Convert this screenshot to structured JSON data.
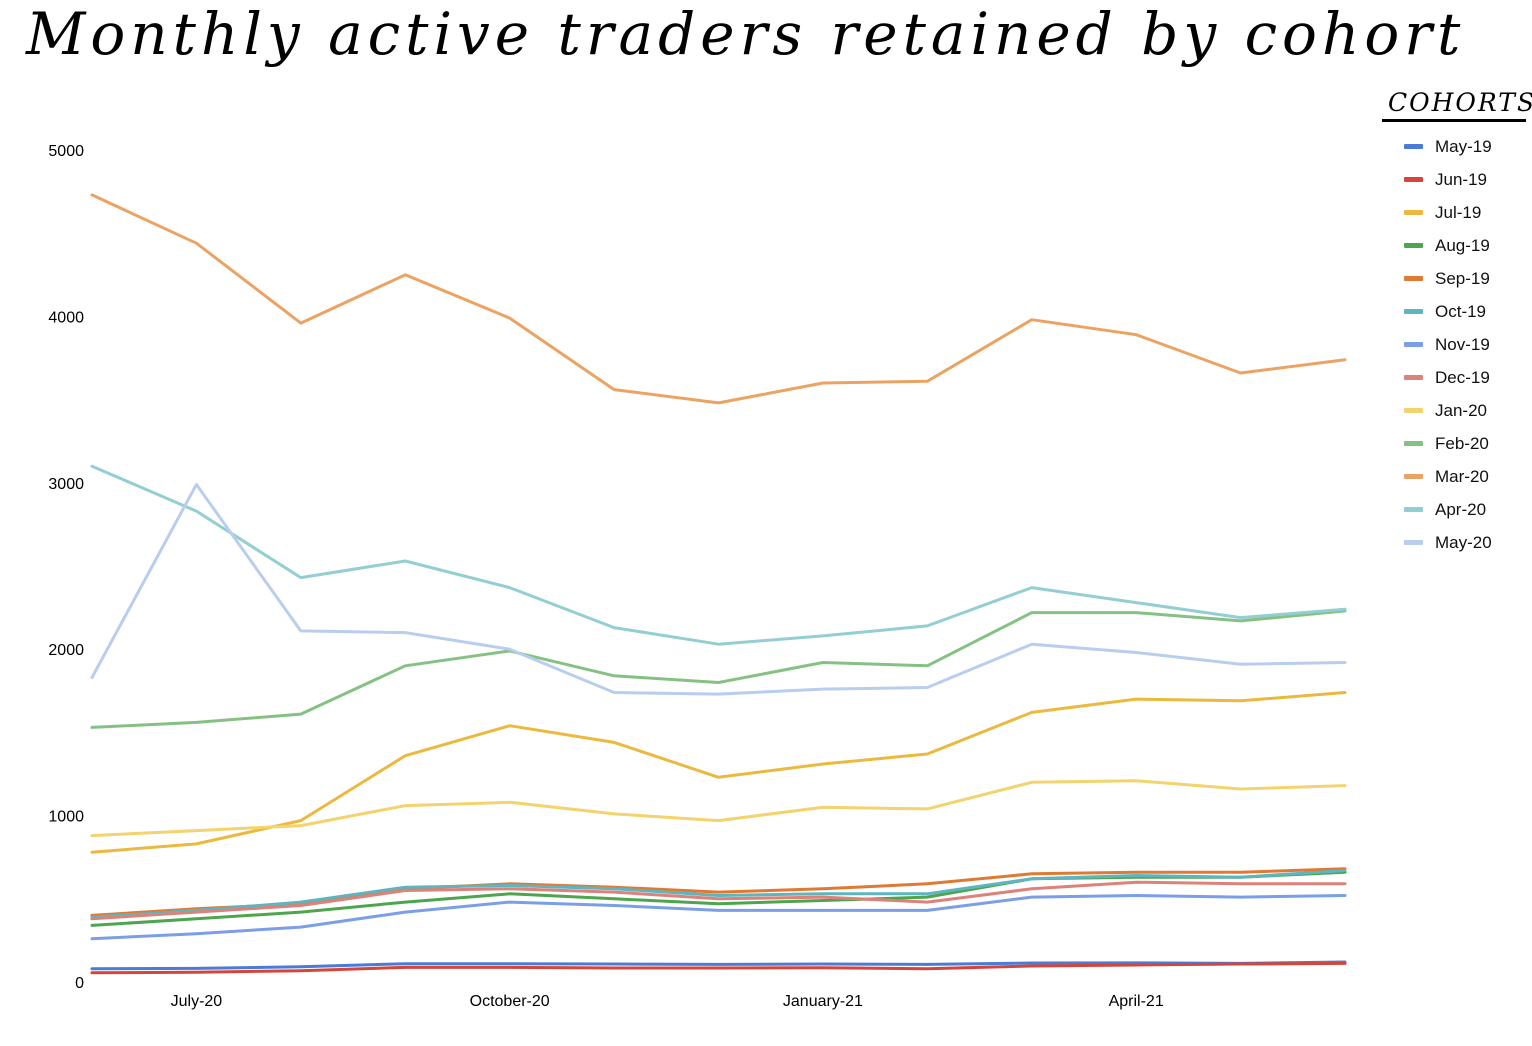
{
  "chart_data": {
    "type": "line",
    "title": "Monthly active traders retained by cohort",
    "xlabel": "",
    "ylabel": "",
    "ylim": [
      0,
      5000
    ],
    "y_ticks": [
      "0",
      "1000",
      "2000",
      "3000",
      "4000",
      "5000"
    ],
    "x_tick_labels": [
      "July-20",
      "October-20",
      "January-21",
      "April-21"
    ],
    "x": [
      "Jun-20",
      "Jul-20",
      "Aug-20",
      "Sep-20",
      "Oct-20",
      "Nov-20",
      "Dec-20",
      "Jan-21",
      "Feb-21",
      "Mar-21",
      "Apr-21",
      "May-21",
      "Jun-21"
    ],
    "grid": false,
    "legend": {
      "title": "COHORTS",
      "position": "right"
    },
    "series": [
      {
        "name": "May-19",
        "color": "#4a7bd6",
        "values": [
          80,
          82,
          92,
          110,
          110,
          108,
          106,
          108,
          106,
          114,
          115,
          112,
          120
        ]
      },
      {
        "name": "Jun-19",
        "color": "#d4463c",
        "values": [
          55,
          58,
          68,
          88,
          88,
          84,
          84,
          86,
          80,
          96,
          102,
          108,
          112
        ]
      },
      {
        "name": "Jul-19",
        "color": "#ecb93f",
        "values": [
          780,
          830,
          970,
          1360,
          1540,
          1440,
          1230,
          1310,
          1370,
          1620,
          1700,
          1690,
          1740
        ]
      },
      {
        "name": "Aug-19",
        "color": "#4da54d",
        "values": [
          340,
          380,
          420,
          480,
          530,
          500,
          470,
          490,
          510,
          620,
          630,
          630,
          660
        ]
      },
      {
        "name": "Sep-19",
        "color": "#e07a33",
        "values": [
          400,
          440,
          470,
          560,
          590,
          570,
          540,
          560,
          590,
          650,
          660,
          660,
          680
        ]
      },
      {
        "name": "Oct-19",
        "color": "#5fb5bf",
        "values": [
          390,
          430,
          480,
          570,
          580,
          560,
          520,
          530,
          530,
          620,
          640,
          630,
          670
        ]
      },
      {
        "name": "Nov-19",
        "color": "#7b9ee6",
        "values": [
          260,
          290,
          330,
          420,
          480,
          460,
          430,
          430,
          430,
          510,
          520,
          510,
          520
        ]
      },
      {
        "name": "Dec-19",
        "color": "#dd827a",
        "values": [
          380,
          420,
          460,
          550,
          560,
          540,
          500,
          510,
          480,
          560,
          600,
          590,
          590
        ]
      },
      {
        "name": "Jan-20",
        "color": "#f2d36d",
        "values": [
          880,
          910,
          940,
          1060,
          1080,
          1010,
          970,
          1050,
          1040,
          1200,
          1210,
          1160,
          1180
        ]
      },
      {
        "name": "Feb-20",
        "color": "#86c184",
        "values": [
          1530,
          1560,
          1610,
          1900,
          1990,
          1840,
          1800,
          1920,
          1900,
          2220,
          2220,
          2170,
          2230
        ]
      },
      {
        "name": "Mar-20",
        "color": "#eba363",
        "values": [
          4730,
          4440,
          3960,
          4250,
          3990,
          3560,
          3480,
          3600,
          3610,
          3980,
          3890,
          3660,
          3740
        ]
      },
      {
        "name": "Apr-20",
        "color": "#93ced2",
        "values": [
          3100,
          2830,
          2430,
          2530,
          2370,
          2130,
          2030,
          2080,
          2140,
          2370,
          2280,
          2190,
          2240
        ]
      },
      {
        "name": "May-20",
        "color": "#b9cdee",
        "values": [
          1830,
          2990,
          2110,
          2100,
          2000,
          1740,
          1730,
          1760,
          1770,
          2030,
          1980,
          1910,
          1920
        ]
      }
    ]
  }
}
